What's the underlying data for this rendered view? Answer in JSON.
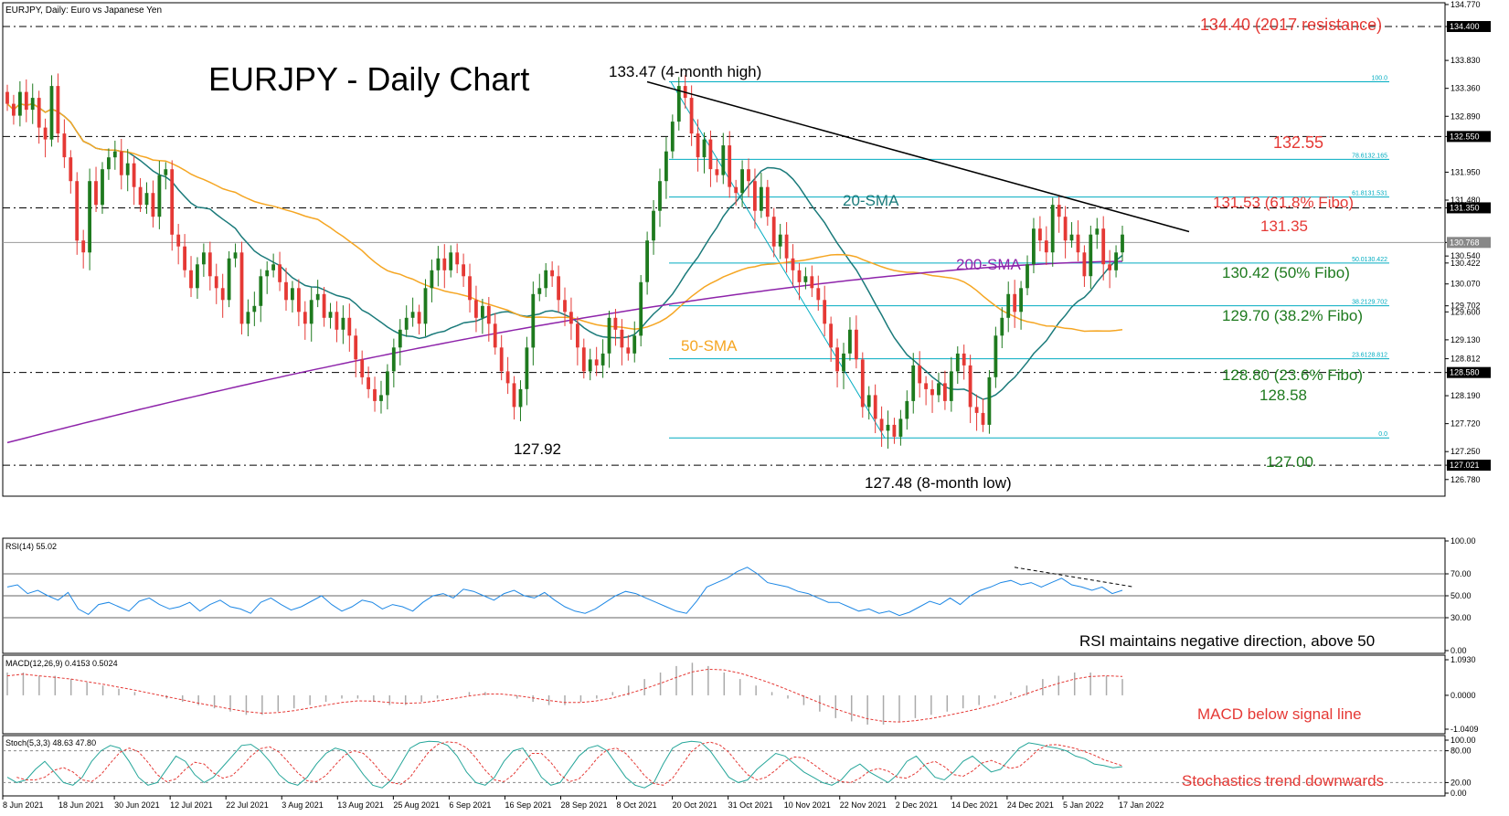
{
  "header": {
    "symbol_label": "EURJPY, Daily:  Euro vs Japanese Yen"
  },
  "chart_data": {
    "type": "candlestick",
    "title": "EURJPY - Daily Chart",
    "y_axis": {
      "min": 126.5,
      "max": 134.8,
      "ticks": [
        "134.770",
        "134.400",
        "133.830",
        "133.360",
        "132.890",
        "132.550",
        "131.950",
        "131.480",
        "131.350",
        "130.768",
        "130.540",
        "130.422",
        "130.070",
        "129.702",
        "129.600",
        "129.130",
        "128.812",
        "128.580",
        "128.190",
        "127.720",
        "127.250",
        "127.021",
        "126.780"
      ]
    },
    "x_axis": {
      "labels": [
        "8 Jun 2021",
        "18 Jun 2021",
        "30 Jun 2021",
        "12 Jul 2021",
        "22 Jul 2021",
        "3 Aug 2021",
        "13 Aug 2021",
        "25 Aug 2021",
        "6 Sep 2021",
        "16 Sep 2021",
        "28 Sep 2021",
        "8 Oct 2021",
        "20 Oct 2021",
        "31 Oct 2021",
        "10 Nov 2021",
        "22 Nov 2021",
        "2 Dec 2021",
        "14 Dec 2021",
        "24 Dec 2021",
        "5 Jan 2022",
        "17 Jan 2022"
      ]
    },
    "candles_close": [
      133.1,
      132.9,
      133.3,
      133.0,
      133.2,
      132.7,
      132.5,
      133.4,
      132.6,
      132.2,
      131.8,
      130.8,
      130.6,
      131.8,
      131.4,
      132.0,
      132.2,
      132.3,
      131.9,
      132.1,
      131.7,
      131.4,
      131.6,
      131.2,
      131.9,
      132.0,
      130.9,
      130.7,
      130.3,
      130.0,
      130.4,
      130.6,
      130.2,
      130.0,
      129.8,
      130.5,
      130.6,
      129.4,
      129.6,
      129.7,
      130.2,
      130.3,
      130.4,
      130.1,
      129.8,
      130.0,
      129.6,
      129.4,
      129.8,
      129.9,
      129.5,
      129.6,
      129.3,
      129.5,
      129.2,
      128.8,
      128.5,
      128.3,
      128.1,
      128.2,
      128.6,
      129.0,
      129.3,
      129.5,
      129.6,
      129.4,
      130.0,
      130.3,
      130.5,
      130.3,
      130.6,
      130.4,
      130.2,
      129.8,
      129.5,
      129.7,
      129.4,
      129.0,
      128.6,
      128.4,
      128.0,
      128.3,
      129.0,
      129.9,
      130.0,
      130.3,
      130.2,
      129.8,
      129.6,
      129.4,
      129.0,
      128.6,
      128.8,
      128.7,
      128.9,
      129.5,
      129.3,
      129.0,
      128.9,
      129.2,
      130.1,
      130.8,
      131.3,
      131.8,
      132.3,
      132.8,
      133.4,
      133.2,
      132.6,
      132.2,
      132.5,
      132.0,
      131.9,
      132.4,
      131.7,
      131.6,
      132.0,
      131.8,
      131.3,
      131.7,
      131.2,
      130.7,
      130.9,
      130.5,
      130.3,
      130.1,
      130.2,
      130.0,
      129.8,
      129.4,
      129.0,
      128.6,
      128.9,
      129.3,
      128.8,
      128.0,
      128.2,
      127.8,
      127.6,
      127.7,
      127.5,
      127.8,
      128.1,
      128.7,
      128.4,
      128.3,
      128.2,
      128.4,
      128.1,
      128.6,
      128.9,
      128.7,
      128.0,
      127.9,
      127.7,
      128.5,
      129.2,
      129.5,
      129.9,
      129.6,
      130.0,
      130.4,
      131.0,
      130.8,
      130.6,
      131.4,
      131.2,
      130.8,
      130.9,
      130.6,
      130.2,
      130.9,
      131.0,
      130.4,
      130.3,
      130.6,
      130.9
    ],
    "series": [
      {
        "name": "20-SMA",
        "color": "#1a7a7a"
      },
      {
        "name": "50-SMA",
        "color": "#f5a623"
      },
      {
        "name": "200-SMA",
        "color": "#8e24aa"
      }
    ],
    "annotations": {
      "resistance_2017": "134.40 (2017 resistance)",
      "high_4m": "133.47 (4-month high)",
      "level_13255": "132.55",
      "fibo_618": "131.53 (61.8% Fibo)",
      "level_13135": "131.35",
      "fibo_50": "130.42 (50% Fibo)",
      "fibo_382": "129.70 (38.2% Fibo)",
      "fibo_236": "128.80 (23.6% Fibo)",
      "level_12858": "128.58",
      "level_12700": "127.00",
      "low_8m": "127.48 (8-month low)",
      "low_12792": "127.92",
      "sma20_label": "20-SMA",
      "sma50_label": "50-SMA",
      "sma200_label": "200-SMA"
    },
    "fibo_levels": [
      {
        "label": "100.0",
        "value": 133.47
      },
      {
        "label": "78.6132.165",
        "value": 132.165
      },
      {
        "label": "61.8131.531",
        "value": 131.531
      },
      {
        "label": "50.0130.422",
        "value": 130.422
      },
      {
        "label": "38.2129.702",
        "value": 129.702
      },
      {
        "label": "23.6128.812",
        "value": 128.812
      },
      {
        "label": "0.0",
        "value": 127.48
      }
    ],
    "colors": {
      "up": "#1e7a1e",
      "down": "#e53935",
      "resistance_text": "#e53935",
      "support_text": "#1e7a1e",
      "fibo_line": "#00acc1"
    }
  },
  "rsi": {
    "label": "RSI(14) 55.02",
    "ticks": [
      "100.00",
      "70.00",
      "50.00",
      "30.00",
      "0.00"
    ],
    "note": "RSI maintains negative direction, above 50",
    "values": [
      58,
      60,
      52,
      55,
      50,
      46,
      53,
      38,
      33,
      42,
      44,
      40,
      36,
      45,
      48,
      42,
      38,
      40,
      44,
      36,
      42,
      46,
      40,
      38,
      34,
      44,
      48,
      42,
      37,
      40,
      45,
      50,
      42,
      36,
      40,
      46,
      44,
      38,
      42,
      40,
      36,
      44,
      50,
      52,
      48,
      56,
      54,
      50,
      46,
      52,
      55,
      50,
      48,
      53,
      46,
      40,
      36,
      34,
      38,
      44,
      50,
      54,
      52,
      48,
      44,
      40,
      36,
      34,
      45,
      58,
      62,
      66,
      72,
      76,
      70,
      62,
      60,
      58,
      54,
      52,
      48,
      44,
      44,
      40,
      36,
      38,
      34,
      36,
      32,
      35,
      40,
      45,
      42,
      48,
      42,
      50,
      55,
      58,
      62,
      64,
      60,
      62,
      58,
      62,
      66,
      60,
      58,
      55,
      58,
      52,
      55
    ]
  },
  "macd": {
    "label": "MACD(12,26,9) 0.4153 0.5024",
    "ticks": [
      "1.0930",
      "0.0000",
      "-1.0409"
    ],
    "note": "MACD below signal line",
    "hist": [
      0.7,
      0.7,
      0.6,
      0.6,
      0.5,
      0.4,
      0.3,
      0.2,
      0.1,
      0.0,
      -0.1,
      -0.2,
      -0.3,
      -0.4,
      -0.5,
      -0.6,
      -0.6,
      -0.5,
      -0.4,
      -0.3,
      -0.2,
      -0.1,
      -0.1,
      -0.2,
      -0.3,
      -0.3,
      -0.2,
      -0.1,
      0.0,
      0.1,
      0.1,
      0.0,
      -0.1,
      -0.2,
      -0.3,
      -0.3,
      -0.2,
      -0.1,
      0.1,
      0.3,
      0.5,
      0.7,
      0.9,
      1.0,
      0.9,
      0.7,
      0.5,
      0.3,
      0.1,
      -0.1,
      -0.3,
      -0.5,
      -0.7,
      -0.8,
      -0.9,
      -0.9,
      -0.8,
      -0.7,
      -0.6,
      -0.5,
      -0.4,
      -0.3,
      -0.1,
      0.1,
      0.3,
      0.5,
      0.6,
      0.7,
      0.7,
      0.6,
      0.5
    ],
    "signal": [
      0.6,
      0.65,
      0.6,
      0.55,
      0.5,
      0.42,
      0.34,
      0.25,
      0.16,
      0.06,
      -0.04,
      -0.14,
      -0.24,
      -0.33,
      -0.42,
      -0.5,
      -0.55,
      -0.53,
      -0.47,
      -0.39,
      -0.3,
      -0.22,
      -0.17,
      -0.18,
      -0.22,
      -0.25,
      -0.23,
      -0.17,
      -0.1,
      -0.02,
      0.04,
      0.04,
      -0.01,
      -0.08,
      -0.16,
      -0.22,
      -0.22,
      -0.17,
      -0.08,
      0.05,
      0.2,
      0.37,
      0.55,
      0.72,
      0.8,
      0.78,
      0.68,
      0.53,
      0.36,
      0.17,
      -0.03,
      -0.23,
      -0.42,
      -0.58,
      -0.72,
      -0.8,
      -0.82,
      -0.78,
      -0.71,
      -0.62,
      -0.52,
      -0.41,
      -0.28,
      -0.12,
      0.05,
      0.22,
      0.37,
      0.5,
      0.58,
      0.6,
      0.58
    ]
  },
  "stoch": {
    "label": "Stoch(5,3,3) 48.63 47.80",
    "ticks": [
      "100.00",
      "80.00",
      "20.00",
      "0.00"
    ],
    "note": "Stochastics trend downwards",
    "k": [
      30,
      20,
      25,
      45,
      60,
      40,
      20,
      15,
      30,
      60,
      80,
      90,
      85,
      60,
      30,
      15,
      20,
      45,
      70,
      60,
      35,
      20,
      30,
      50,
      70,
      90,
      92,
      80,
      60,
      35,
      20,
      15,
      30,
      55,
      75,
      85,
      80,
      60,
      35,
      15,
      10,
      25,
      55,
      85,
      95,
      98,
      97,
      90,
      70,
      40,
      20,
      15,
      30,
      60,
      80,
      85,
      60,
      30,
      15,
      20,
      45,
      70,
      85,
      90,
      80,
      55,
      30,
      15,
      10,
      20,
      55,
      85,
      95,
      98,
      96,
      80,
      55,
      30,
      20,
      25,
      45,
      60,
      75,
      70,
      55,
      40,
      30,
      20,
      15,
      25,
      45,
      55,
      40,
      30,
      20,
      35,
      60,
      70,
      50,
      30,
      25,
      40,
      60,
      70,
      55,
      40,
      45,
      65,
      85,
      95,
      92,
      88,
      85,
      80,
      70,
      65,
      55,
      52,
      48,
      50
    ]
  }
}
